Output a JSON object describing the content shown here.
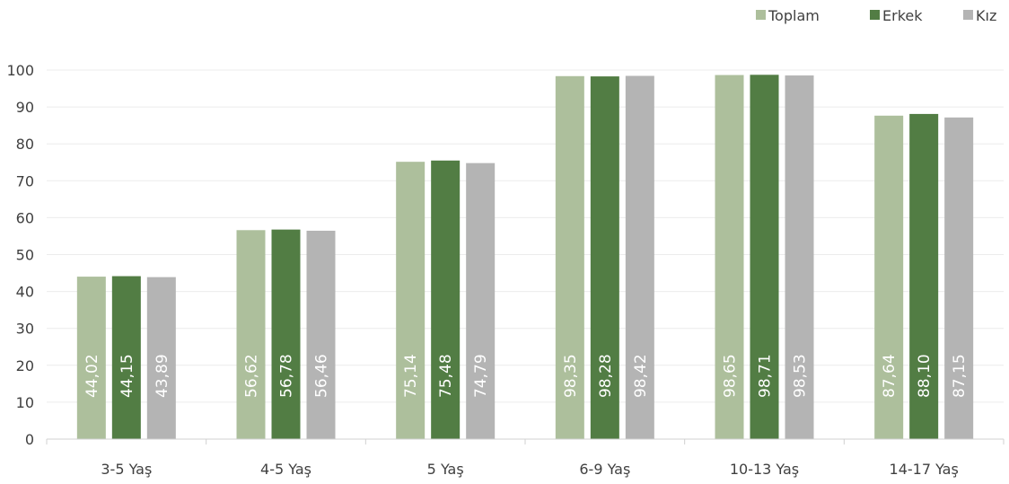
{
  "chart_data": {
    "type": "bar",
    "categories": [
      "3-5 Yaş",
      "4-5 Yaş",
      "5 Yaş",
      "6-9 Yaş",
      "10-13 Yaş",
      "14-17 Yaş"
    ],
    "series": [
      {
        "name": "Toplam",
        "color": "#adbf9c",
        "values": [
          44.02,
          56.62,
          75.14,
          98.35,
          98.65,
          87.64
        ],
        "labels": [
          "44,02",
          "56,62",
          "75,14",
          "98,35",
          "98,65",
          "87,64"
        ]
      },
      {
        "name": "Erkek",
        "color": "#527d44",
        "values": [
          44.15,
          56.78,
          75.48,
          98.28,
          98.71,
          88.1
        ],
        "labels": [
          "44,15",
          "56,78",
          "75,48",
          "98,28",
          "98,71",
          "88,10"
        ]
      },
      {
        "name": "Kız",
        "color": "#b4b4b4",
        "values": [
          43.89,
          56.46,
          74.79,
          98.42,
          98.53,
          87.15
        ],
        "labels": [
          "43,89",
          "56,46",
          "74,79",
          "98,42",
          "98,53",
          "87,15"
        ]
      }
    ],
    "yticks": [
      "0",
      "10",
      "20",
      "30",
      "40",
      "50",
      "60",
      "70",
      "80",
      "90",
      "100"
    ],
    "ylim": [
      0,
      100
    ],
    "grid": true,
    "legend_position": "top-right"
  }
}
